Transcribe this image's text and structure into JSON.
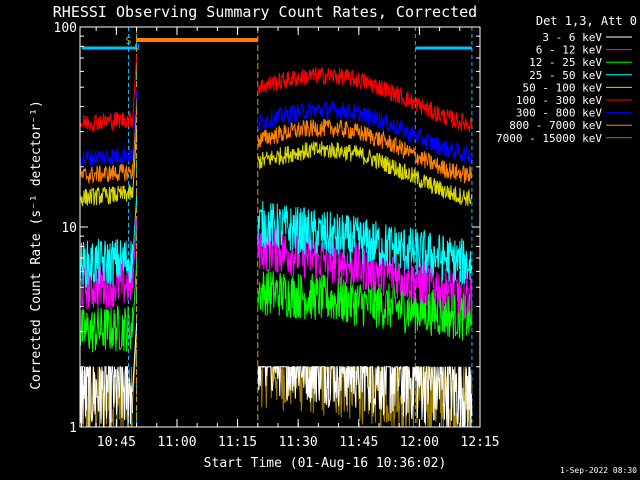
{
  "chart_data": {
    "type": "line",
    "title": "RHESSI Observing Summary Count Rates, Corrected",
    "xlabel": "Start Time (01-Aug-16 10:36:02)",
    "ylabel": "Corrected Count Rate (s⁻¹ detector⁻¹)",
    "yscale": "log",
    "ylim": [
      1,
      100
    ],
    "xlim": [
      "10:36",
      "12:15"
    ],
    "x_ticks": [
      "10:45",
      "11:00",
      "11:15",
      "11:30",
      "11:45",
      "12:00",
      "12:15"
    ],
    "y_ticks": [
      "1",
      "10",
      "100"
    ],
    "legend_title": "Det 1,3, Att 0",
    "legend_position": "right",
    "footer_date": "1-Sep-2022 08:30",
    "markers": [
      {
        "label": "S",
        "color": "#d8a000"
      },
      {
        "label": "N",
        "color": "#00c0ff"
      }
    ],
    "night_intervals": [
      [
        "10:48",
        "10:50"
      ],
      [
        "11:59",
        "12:13"
      ]
    ],
    "saa_intervals": [
      [
        "10:50",
        "11:20"
      ]
    ],
    "series": [
      {
        "name": "3 - 6 keV",
        "color": "#ffffff",
        "values_start": [
          1.5
        ],
        "values_end": [
          1.5
        ]
      },
      {
        "name": "6 - 12 keV",
        "color": "#ff00ff",
        "values_start": [
          5.0
        ],
        "values_end": [
          4.5
        ]
      },
      {
        "name": "12 - 25 keV",
        "color": "#00ff00",
        "values_start": [
          3.0
        ],
        "values_end": [
          3.5
        ]
      },
      {
        "name": "25 - 50 keV",
        "color": "#00ffff",
        "values_start": [
          6.5
        ],
        "values_end": [
          6.5
        ]
      },
      {
        "name": "50 - 100 keV",
        "color": "#d8d800",
        "values_start": [
          14
        ],
        "values_end": [
          17
        ]
      },
      {
        "name": "100 - 300 keV",
        "color": "#ff0000",
        "values_start": [
          33
        ],
        "values_end": [
          40
        ]
      },
      {
        "name": "300 - 800 keV",
        "color": "#0000ff",
        "values_start": [
          22
        ],
        "values_end": [
          28
        ]
      },
      {
        "name": "800 - 7000 keV",
        "color": "#ff8000",
        "values_start": [
          18
        ],
        "values_end": [
          22
        ]
      },
      {
        "name": "7000 - 15000 keV",
        "color": "#a08000",
        "values_start": [
          1.3
        ],
        "values_end": [
          1.3
        ]
      }
    ]
  }
}
